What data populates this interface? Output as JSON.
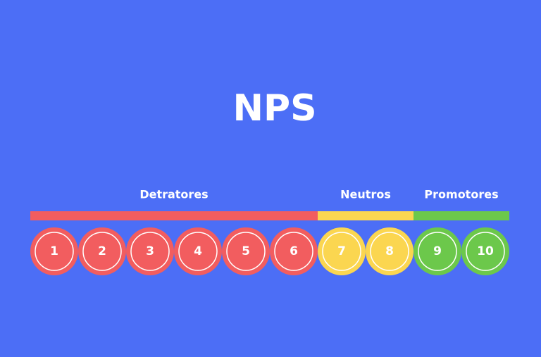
{
  "title": "NPS",
  "groups": [
    {
      "label": "Detratores",
      "color": "#f25d5f",
      "scores": [
        1,
        2,
        3,
        4,
        5,
        6
      ]
    },
    {
      "label": "Neutros",
      "color": "#fbd650",
      "scores": [
        7,
        8
      ]
    },
    {
      "label": "Promotores",
      "color": "#6cc84b",
      "scores": [
        9,
        10
      ]
    }
  ]
}
